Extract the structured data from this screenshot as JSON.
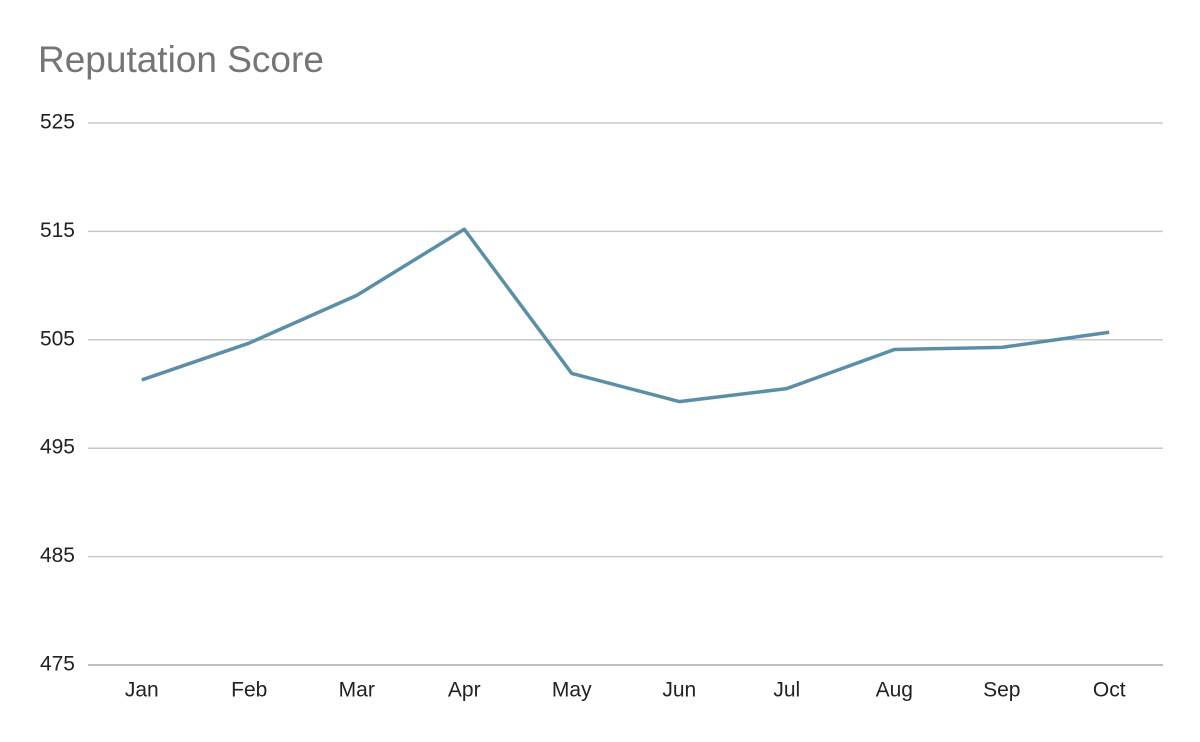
{
  "chart_data": {
    "type": "line",
    "title": "Reputation Score",
    "categories": [
      "Jan",
      "Feb",
      "Mar",
      "Apr",
      "May",
      "Jun",
      "Jul",
      "Aug",
      "Sep",
      "Oct"
    ],
    "series": [
      {
        "name": "Reputation Score",
        "color": "#5b8fa8",
        "values": [
          501.3,
          504.7,
          509.1,
          515.2,
          501.9,
          499.3,
          500.5,
          504.1,
          504.3,
          505.7
        ]
      }
    ],
    "ylim": [
      475,
      525
    ],
    "yticks": [
      475,
      485,
      495,
      505,
      515,
      525
    ],
    "grid": true
  }
}
